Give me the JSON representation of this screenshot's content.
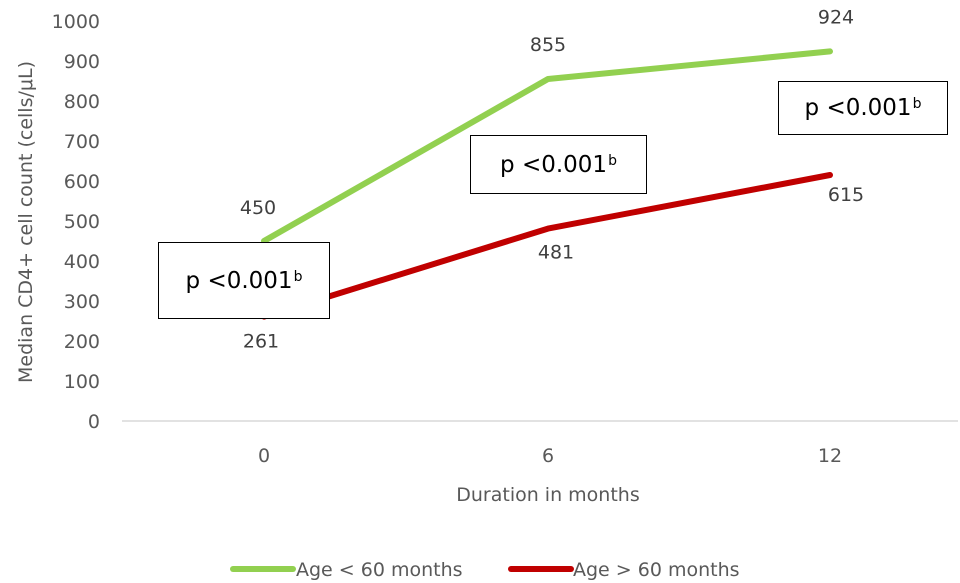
{
  "chart_data": {
    "type": "line",
    "categories": [
      "0",
      "6",
      "12"
    ],
    "xlabel": "Duration in months",
    "ylabel": "Median CD4+ cell count (cells/μL)",
    "ylim": [
      0,
      1000
    ],
    "yticks": [
      0,
      100,
      200,
      300,
      400,
      500,
      600,
      700,
      800,
      900,
      1000
    ],
    "ytick_labels": [
      "0",
      "100",
      "200",
      "300",
      "400",
      "500",
      "600",
      "700",
      "800",
      "900",
      "1000"
    ],
    "grid": false,
    "legend": "bottom",
    "series": [
      {
        "name": "Age < 60 months",
        "color": "#92D050",
        "values": [
          450,
          855,
          924
        ],
        "labels": [
          "450",
          "855",
          "924"
        ]
      },
      {
        "name": "Age > 60 months",
        "color": "#C00000",
        "values": [
          261,
          481,
          615
        ],
        "labels": [
          "261",
          "481",
          "615"
        ]
      }
    ],
    "annotations": [
      {
        "text": "p <0.001",
        "sup": "b"
      },
      {
        "text": "p <0.001",
        "sup": "b"
      },
      {
        "text": "p <0.001",
        "sup": "b"
      }
    ]
  }
}
